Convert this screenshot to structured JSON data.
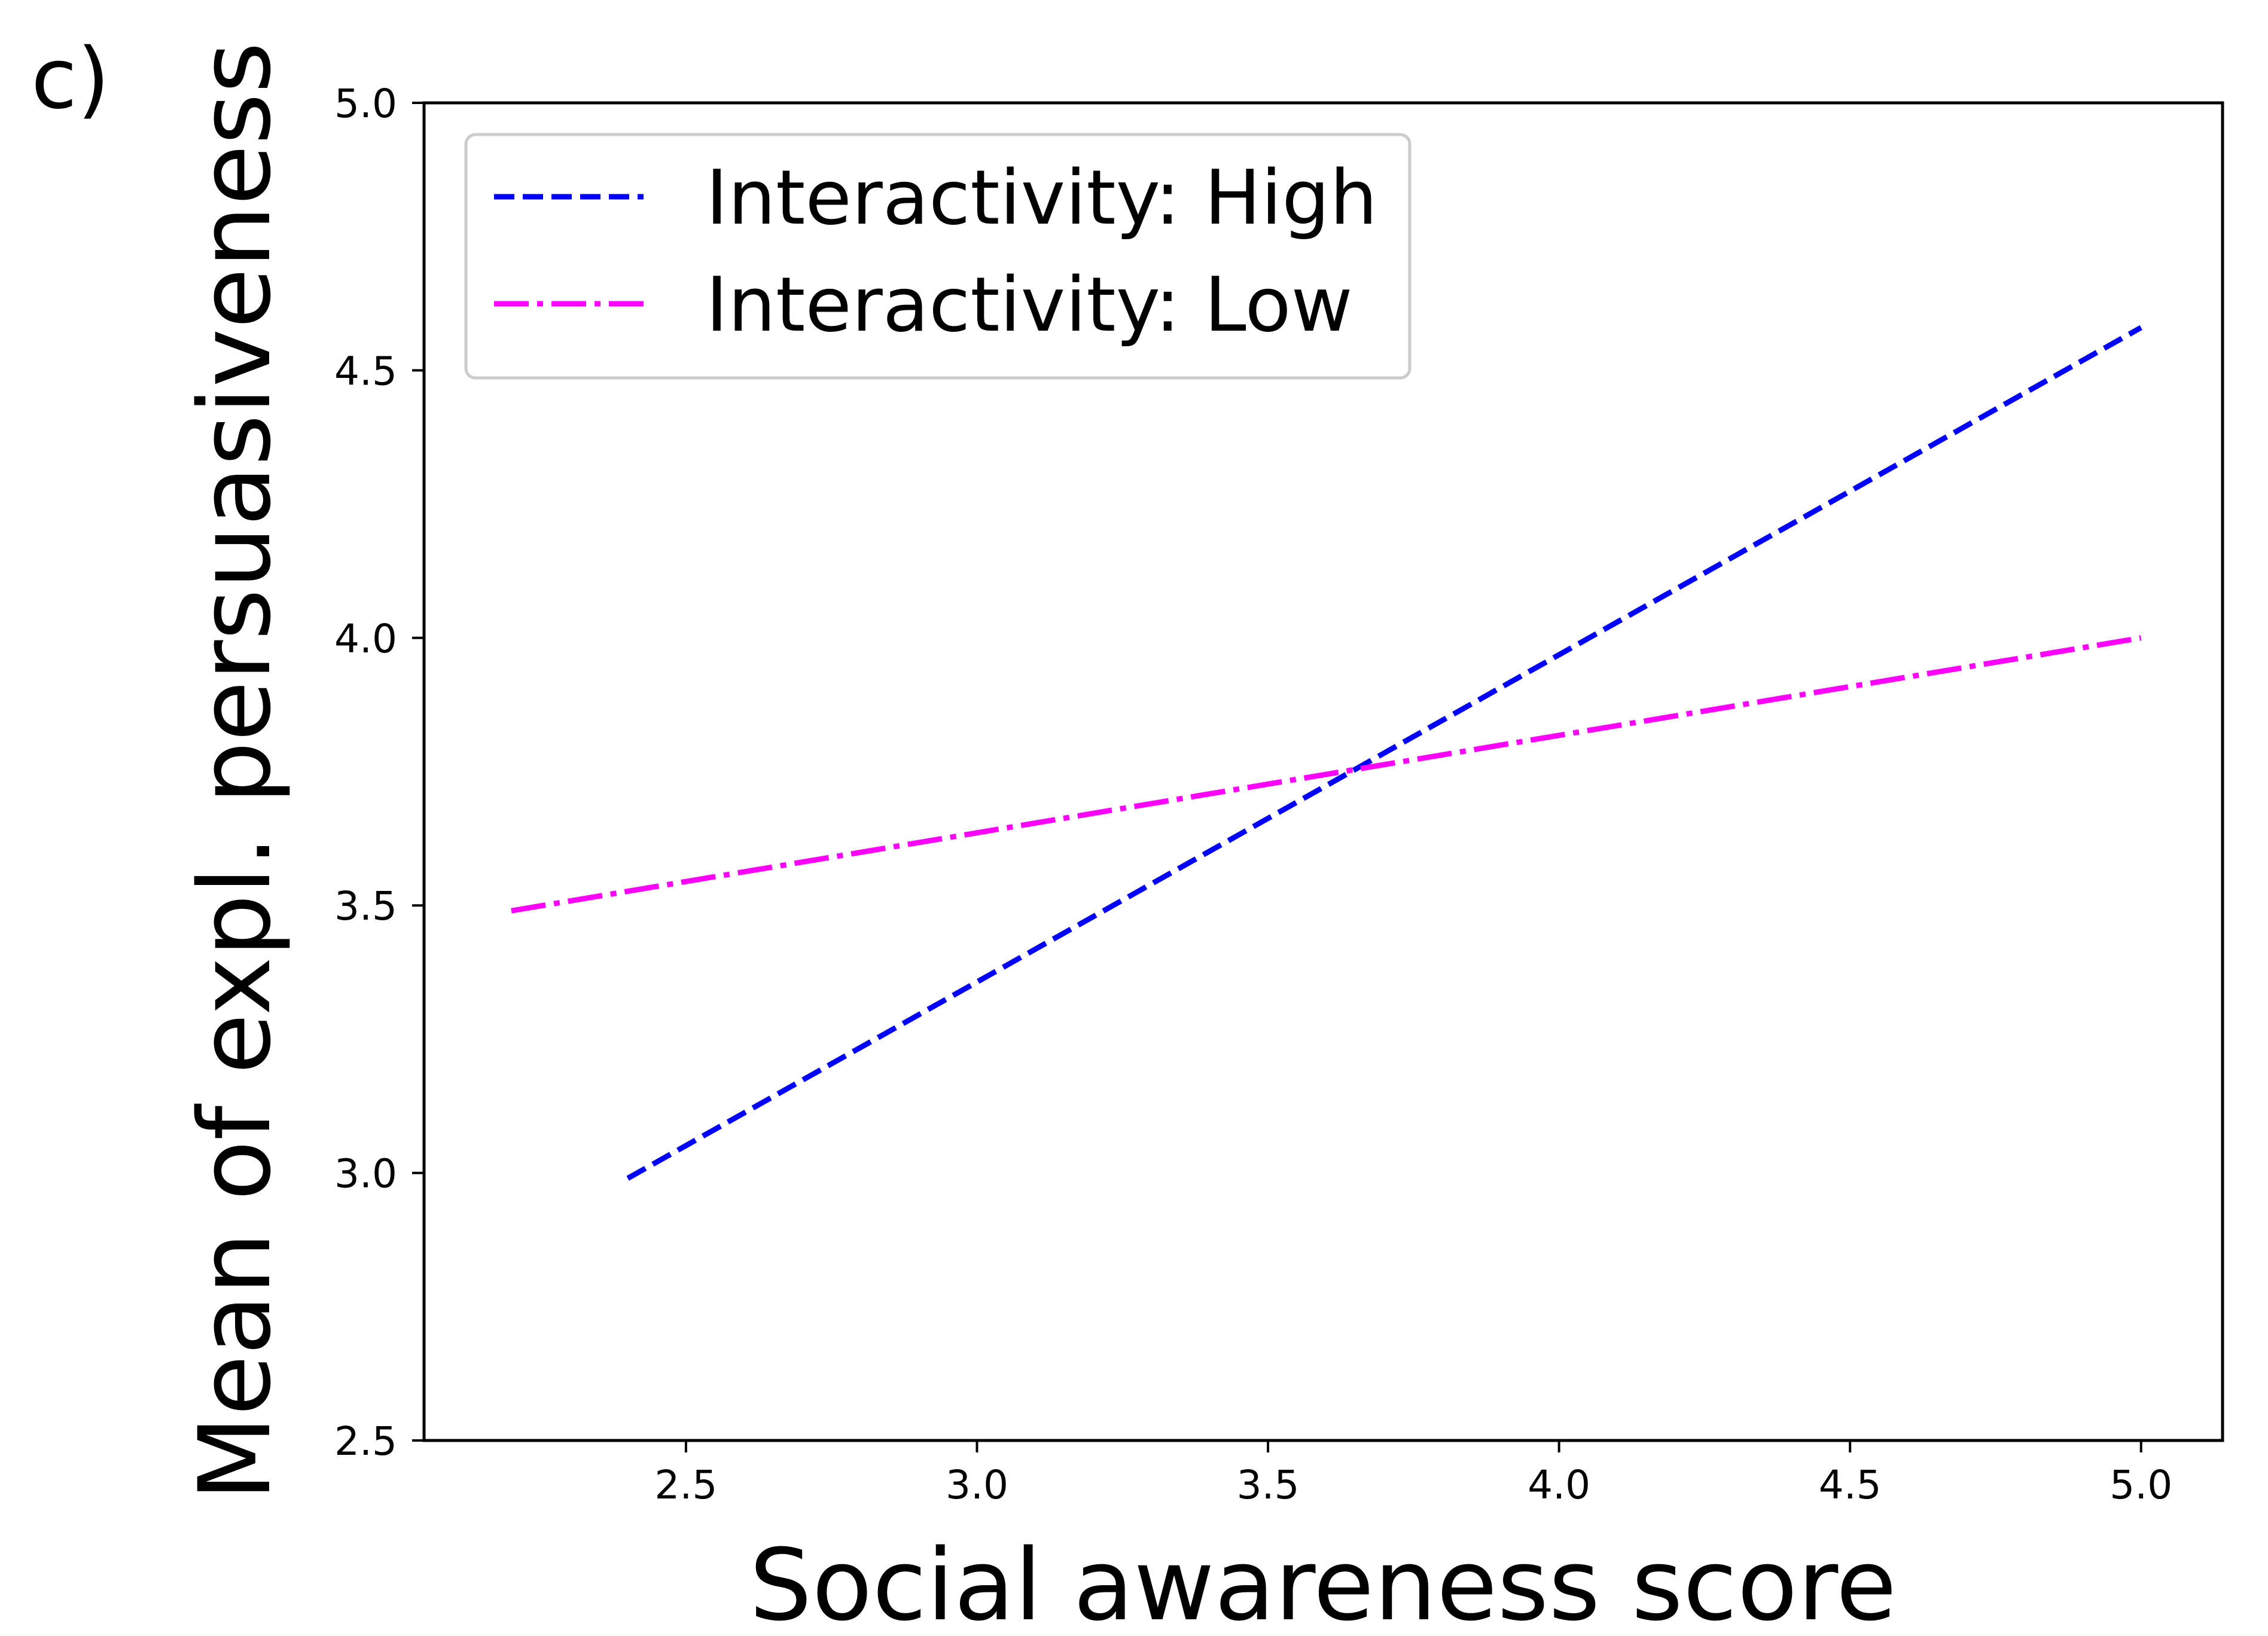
{
  "panel_label": "c)",
  "chart_data": {
    "type": "line",
    "title": "",
    "xlabel": "Social awareness score",
    "ylabel": "Mean of expl. persuasiveness",
    "xlim": [
      2.05,
      5.14
    ],
    "ylim": [
      2.5,
      5.0
    ],
    "xticks": [
      "2.5",
      "3.0",
      "3.5",
      "4.0",
      "4.5",
      "5.0"
    ],
    "yticks": [
      "2.5",
      "3.0",
      "3.5",
      "4.0",
      "4.5",
      "5.0"
    ],
    "grid": false,
    "legend_position": "top-left",
    "series": [
      {
        "name": "Interactivity: High",
        "color": "#0000ff",
        "style": "dashed",
        "x": [
          2.4,
          5.0
        ],
        "y": [
          2.99,
          4.58
        ]
      },
      {
        "name": "Interactivity: Low",
        "color": "#ff00ff",
        "style": "dashdot",
        "x": [
          2.2,
          5.0
        ],
        "y": [
          3.49,
          4.0
        ]
      }
    ]
  }
}
